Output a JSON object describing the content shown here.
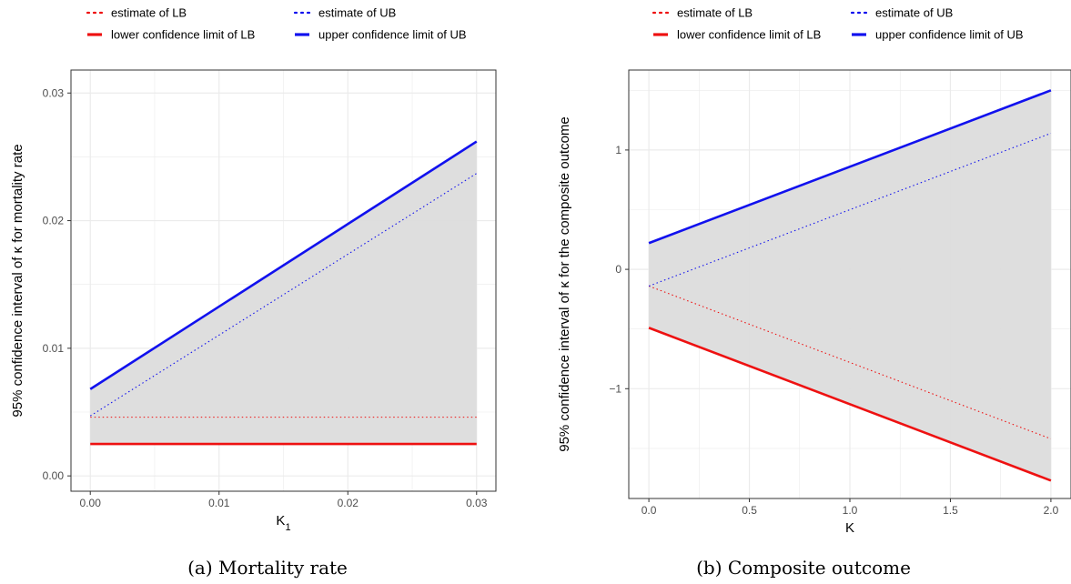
{
  "legend": {
    "items": [
      {
        "label": "estimate of LB",
        "color": "#ee1111",
        "style": "dotted"
      },
      {
        "label": "estimate of UB",
        "color": "#1111ee",
        "style": "dotted"
      },
      {
        "label": "lower confidence limit of LB",
        "color": "#ee1111",
        "style": "solid"
      },
      {
        "label": "upper confidence limit of UB",
        "color": "#1111ee",
        "style": "solid"
      }
    ]
  },
  "colors": {
    "band": "#dcdcdc",
    "grid": "#ebebeb",
    "panel_border": "#333333",
    "lb": "#ee1111",
    "ub": "#1111ee"
  },
  "chart_data": [
    {
      "type": "line",
      "caption": "(a) Mortality rate",
      "xlabel": "K",
      "xlabel_sub": "1",
      "ylabel": "95% confidence interval of κ for mortality rate",
      "xlim": [
        -0.0015,
        0.0315
      ],
      "ylim": [
        -0.0012,
        0.0318
      ],
      "xticks": [
        0.0,
        0.01,
        0.02,
        0.03
      ],
      "xtick_labels": [
        "0.00",
        "0.01",
        "0.02",
        "0.03"
      ],
      "yticks": [
        0.0,
        0.01,
        0.02,
        0.03
      ],
      "ytick_labels": [
        "0.00",
        "0.01",
        "0.02",
        "0.03"
      ],
      "x": [
        0.0,
        0.03
      ],
      "series": [
        {
          "name": "estimate of LB",
          "y": [
            0.0046,
            0.0046
          ]
        },
        {
          "name": "estimate of UB",
          "y": [
            0.0047,
            0.0237
          ]
        },
        {
          "name": "lower confidence limit of LB",
          "y": [
            0.0025,
            0.0025
          ]
        },
        {
          "name": "upper confidence limit of UB",
          "y": [
            0.0068,
            0.0262
          ]
        }
      ]
    },
    {
      "type": "line",
      "caption": "(b) Composite outcome",
      "xlabel": "K",
      "xlabel_sub": "",
      "ylabel": "95% confidence interval of κ for the composite outcome",
      "xlim": [
        -0.1,
        2.1
      ],
      "ylim": [
        -1.92,
        1.67
      ],
      "xticks": [
        0.0,
        0.5,
        1.0,
        1.5,
        2.0
      ],
      "xtick_labels": [
        "0.0",
        "0.5",
        "1.0",
        "1.5",
        "2.0"
      ],
      "yticks": [
        -1,
        0,
        1
      ],
      "ytick_labels": [
        "−1",
        "0",
        "1"
      ],
      "x": [
        0.0,
        2.0
      ],
      "series": [
        {
          "name": "estimate of LB",
          "y": [
            -0.14,
            -1.42
          ]
        },
        {
          "name": "estimate of UB",
          "y": [
            -0.14,
            1.14
          ]
        },
        {
          "name": "lower confidence limit of LB",
          "y": [
            -0.49,
            -1.77
          ]
        },
        {
          "name": "upper confidence limit of UB",
          "y": [
            0.22,
            1.5
          ]
        }
      ]
    }
  ]
}
